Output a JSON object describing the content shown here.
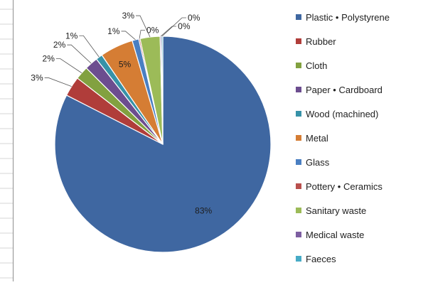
{
  "chart_data": {
    "type": "pie",
    "title": "",
    "legend_position": "right",
    "slices": [
      {
        "label": "Plastic • Polystyrene",
        "value": 83,
        "display": "83%",
        "color": "#3f67a1"
      },
      {
        "label": "Rubber",
        "value": 3,
        "display": "3%",
        "color": "#b03d3a"
      },
      {
        "label": "Cloth",
        "value": 2,
        "display": "2%",
        "color": "#82a140"
      },
      {
        "label": "Paper • Cardboard",
        "value": 2,
        "display": "2%",
        "color": "#6c4d8f"
      },
      {
        "label": "Wood (machined)",
        "value": 1,
        "display": "1%",
        "color": "#3792a8"
      },
      {
        "label": "Metal",
        "value": 5,
        "display": "5%",
        "color": "#d57d34"
      },
      {
        "label": "Glass",
        "value": 1,
        "display": "1%",
        "color": "#4a7fc2"
      },
      {
        "label": "Pottery • Ceramics",
        "value": 0.2,
        "display": "0%",
        "color": "#b9504d"
      },
      {
        "label": "Sanitary waste",
        "value": 3,
        "display": "3%",
        "color": "#9cbb58"
      },
      {
        "label": "Medical waste",
        "value": 0.2,
        "display": "0%",
        "color": "#7d5ea1"
      },
      {
        "label": "Faeces",
        "value": 0.2,
        "display": "0%",
        "color": "#47abc6"
      }
    ]
  }
}
